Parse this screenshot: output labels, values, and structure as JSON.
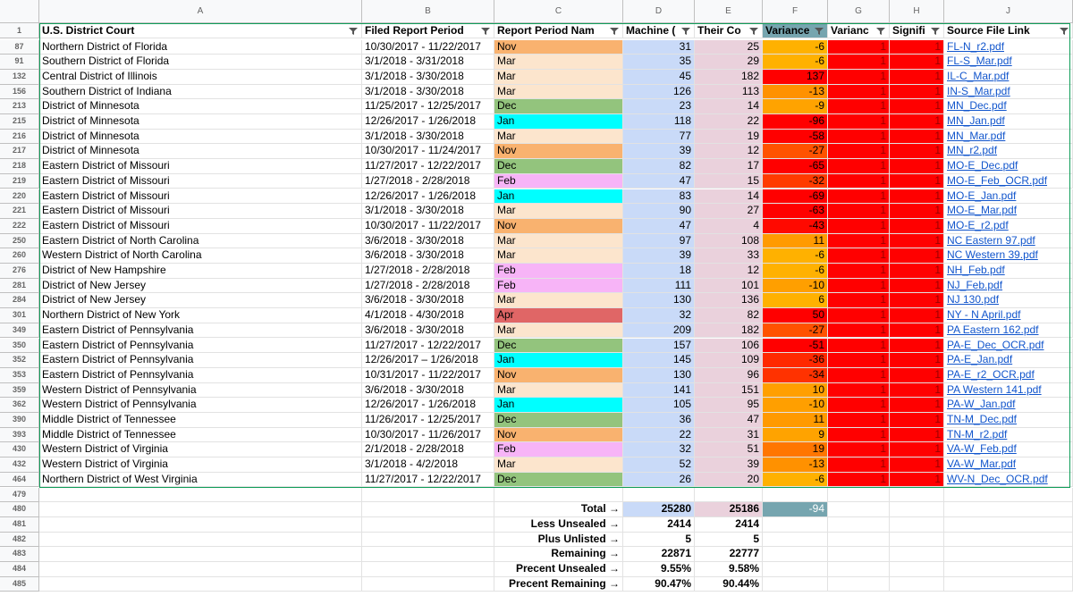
{
  "columns": [
    "A",
    "B",
    "C",
    "D",
    "E",
    "F",
    "G",
    "H",
    "J"
  ],
  "header": {
    "row": 1,
    "cells": [
      "U.S. District Court",
      "Filed Report Period",
      "Report Period Nam",
      "Machine (",
      "Their Co",
      "Variance",
      "Varianc",
      "Signifi",
      "Source File Link"
    ]
  },
  "month_colors": {
    "Nov": "#f9b26f",
    "Mar": "#fce5cd",
    "Dec": "#93c47d",
    "Jan": "#00ffff",
    "Feb": "#f7b4f7",
    "Apr": "#e06666"
  },
  "column_colors": {
    "D": "#c9daf8",
    "E": "#ead1dc",
    "G": "#ff0000",
    "H": "#ff0000",
    "F_header": "#76a5af",
    "total_variance": "#76a5af"
  },
  "rows": [
    [
      87,
      "Northern District of Florida",
      "10/30/2017 - 11/22/2017",
      "Nov",
      31,
      25,
      -6,
      1,
      1,
      "FL-N_r2.pdf"
    ],
    [
      91,
      "Southern District of Florida",
      "3/1/2018 - 3/31/2018",
      "Mar",
      35,
      29,
      -6,
      1,
      1,
      "FL-S_Mar.pdf"
    ],
    [
      132,
      "Central District of Illinois",
      "3/1/2018 - 3/30/2018",
      "Mar",
      45,
      182,
      137,
      1,
      1,
      "IL-C_Mar.pdf"
    ],
    [
      156,
      "Southern District of Indiana",
      "3/1/2018 - 3/30/2018",
      "Mar",
      126,
      113,
      -13,
      1,
      1,
      "IN-S_Mar.pdf"
    ],
    [
      213,
      "District of Minnesota",
      "11/25/2017 - 12/25/2017",
      "Dec",
      23,
      14,
      -9,
      1,
      1,
      "MN_Dec.pdf"
    ],
    [
      215,
      "District of Minnesota",
      "12/26/2017 - 1/26/2018",
      "Jan",
      118,
      22,
      -96,
      1,
      1,
      "MN_Jan.pdf"
    ],
    [
      216,
      "District of Minnesota",
      "3/1/2018 - 3/30/2018",
      "Mar",
      77,
      19,
      -58,
      1,
      1,
      "MN_Mar.pdf"
    ],
    [
      217,
      "District of Minnesota",
      "10/30/2017 - 11/24/2017",
      "Nov",
      39,
      12,
      -27,
      1,
      1,
      "MN_r2.pdf"
    ],
    [
      218,
      "Eastern District of Missouri",
      "11/27/2017 - 12/22/2017",
      "Dec",
      82,
      17,
      -65,
      1,
      1,
      "MO-E_Dec.pdf"
    ],
    [
      219,
      "Eastern District of Missouri",
      "1/27/2018 - 2/28/2018",
      "Feb",
      47,
      15,
      -32,
      1,
      1,
      "MO-E_Feb_OCR.pdf"
    ],
    [
      220,
      "Eastern District of Missouri",
      "12/26/2017 - 1/26/2018",
      "Jan",
      83,
      14,
      -69,
      1,
      1,
      "MO-E_Jan.pdf"
    ],
    [
      221,
      "Eastern District of Missouri",
      "3/1/2018 - 3/30/2018",
      "Mar",
      90,
      27,
      -63,
      1,
      1,
      "MO-E_Mar.pdf"
    ],
    [
      222,
      "Eastern District of Missouri",
      "10/30/2017 - 11/22/2017",
      "Nov",
      47,
      4,
      -43,
      1,
      1,
      "MO-E_r2.pdf"
    ],
    [
      250,
      "Eastern District of North Carolina",
      "3/6/2018 - 3/30/2018",
      "Mar",
      97,
      108,
      11,
      1,
      1,
      "NC Eastern 97.pdf"
    ],
    [
      260,
      "Western District of North Carolina",
      "3/6/2018 - 3/30/2018",
      "Mar",
      39,
      33,
      -6,
      1,
      1,
      "NC Western 39.pdf"
    ],
    [
      276,
      "District of New Hampshire",
      "1/27/2018 - 2/28/2018",
      "Feb",
      18,
      12,
      -6,
      1,
      1,
      "NH_Feb.pdf"
    ],
    [
      281,
      "District of New Jersey",
      "1/27/2018 - 2/28/2018",
      "Feb",
      111,
      101,
      -10,
      1,
      1,
      "NJ_Feb.pdf"
    ],
    [
      284,
      "District of New Jersey",
      "3/6/2018 - 3/30/2018",
      "Mar",
      130,
      136,
      6,
      1,
      1,
      "NJ 130.pdf"
    ],
    [
      301,
      "Northern District of New York",
      "4/1/2018 - 4/30/2018",
      "Apr",
      32,
      82,
      50,
      1,
      1,
      "NY - N April.pdf"
    ],
    [
      349,
      "Eastern District of Pennsylvania",
      "3/6/2018 - 3/30/2018",
      "Mar",
      209,
      182,
      -27,
      1,
      1,
      "PA Eastern 162.pdf"
    ],
    [
      350,
      "Eastern District of Pennsylvania",
      "11/27/2017 - 12/22/2017",
      "Dec",
      157,
      106,
      -51,
      1,
      1,
      "PA-E_Dec_OCR.pdf"
    ],
    [
      352,
      "Eastern District of Pennsylvania",
      "12/26/2017 – 1/26/2018",
      "Jan",
      145,
      109,
      -36,
      1,
      1,
      "PA-E_Jan.pdf"
    ],
    [
      353,
      "Eastern District of Pennsylvania",
      "10/31/2017 - 11/22/2017",
      "Nov",
      130,
      96,
      -34,
      1,
      1,
      "PA-E_r2_OCR.pdf"
    ],
    [
      359,
      "Western District of Pennsylvania",
      "3/6/2018 - 3/30/2018",
      "Mar",
      141,
      151,
      10,
      1,
      1,
      "PA Western 141.pdf"
    ],
    [
      362,
      "Western District of Pennsylvania",
      "12/26/2017 - 1/26/2018",
      "Jan",
      105,
      95,
      -10,
      1,
      1,
      "PA-W_Jan.pdf"
    ],
    [
      390,
      "Middle District of Tennessee",
      "11/26/2017 - 12/25/2017",
      "Dec",
      36,
      47,
      11,
      1,
      1,
      "TN-M_Dec.pdf"
    ],
    [
      393,
      "Middle District of Tennessee",
      "10/30/2017 - 11/26/2017",
      "Nov",
      22,
      31,
      9,
      1,
      1,
      "TN-M_r2.pdf"
    ],
    [
      430,
      "Western District of Virginia",
      "2/1/2018 - 2/28/2018",
      "Feb",
      32,
      51,
      19,
      1,
      1,
      "VA-W_Feb.pdf"
    ],
    [
      432,
      "Western District of Virginia",
      "3/1/2018 - 4/2/2018",
      "Mar",
      52,
      39,
      -13,
      1,
      1,
      "VA-W_Mar.pdf"
    ],
    [
      464,
      "Northern District of West Virginia",
      "11/27/2017 - 12/22/2017",
      "Dec",
      26,
      20,
      -6,
      1,
      1,
      "WV-N_Dec_OCR.pdf"
    ]
  ],
  "blank_row": 479,
  "summary": [
    {
      "n": 480,
      "label": "Total →",
      "d": 25280,
      "e": 25186,
      "f": -94
    },
    {
      "n": 481,
      "label": "Less Unsealed →",
      "d": 2414,
      "e": 2414
    },
    {
      "n": 482,
      "label": "Plus Unlisted →",
      "d": 5,
      "e": 5
    },
    {
      "n": 483,
      "label": "Remaining →",
      "d": 22871,
      "e": 22777
    },
    {
      "n": 484,
      "label": "Precent Unsealed →",
      "d": "9.55%",
      "e": "9.58%"
    },
    {
      "n": 485,
      "label": "Precent Remaining →",
      "d": "90.47%",
      "e": "90.44%"
    }
  ]
}
